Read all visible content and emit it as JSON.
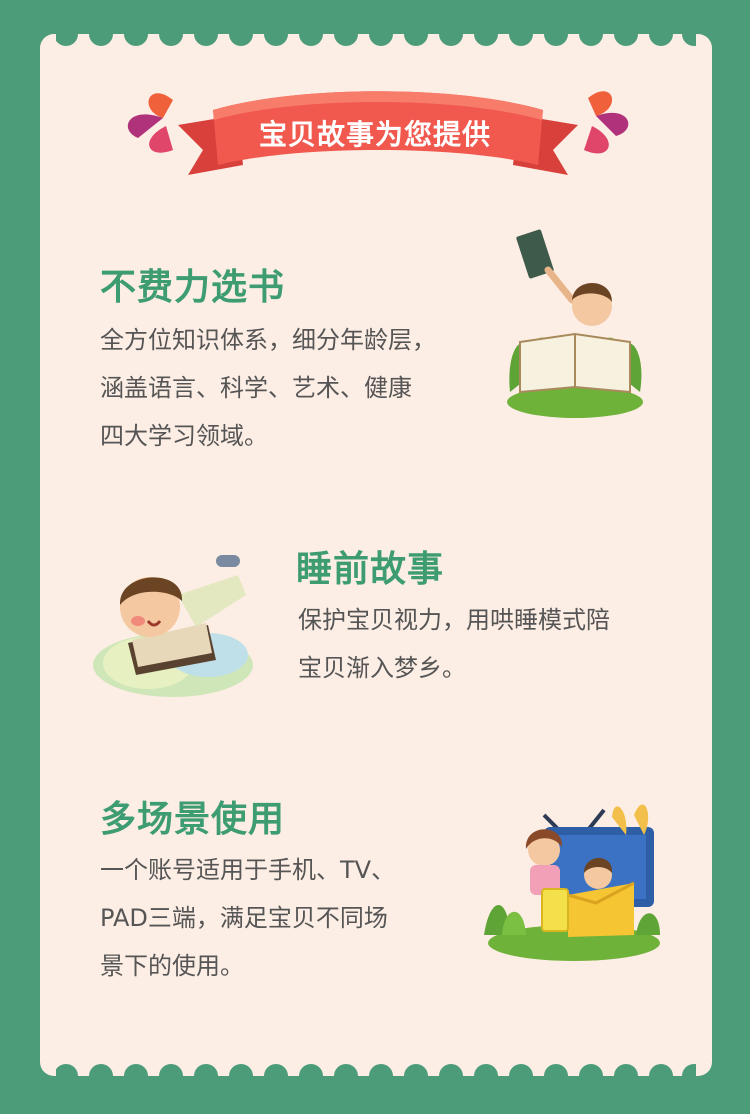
{
  "banner": {
    "title": "宝贝故事为您提供"
  },
  "sections": [
    {
      "title": "不费力选书",
      "lines": [
        "全方位知识体系，细分年龄层，",
        "涵盖语言、科学、艺术、健康",
        "四大学习领域。"
      ],
      "illustration": "child-reading-book"
    },
    {
      "title": "睡前故事",
      "lines": [
        "保护宝贝视力，用哄睡模式陪",
        "宝贝渐入梦乡。"
      ],
      "illustration": "child-sleeping-on-book"
    },
    {
      "title": "多场景使用",
      "lines": [
        "一个账号适用于手机、TV、",
        "PAD三端，满足宝贝不同场",
        "景下的使用。"
      ],
      "illustration": "children-with-tv-and-devices"
    }
  ],
  "colors": {
    "background": "#4c9c7a",
    "card": "#fdeee5",
    "accent": "#3e9c72",
    "banner": "#f1584e",
    "text": "#555555"
  }
}
